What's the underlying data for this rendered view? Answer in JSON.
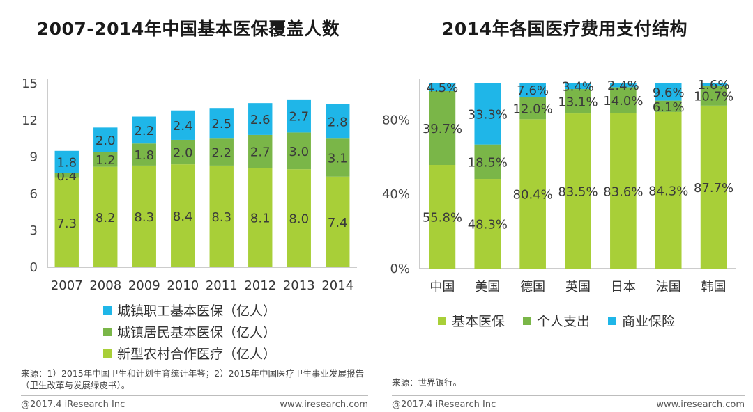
{
  "chart_data": [
    {
      "type": "bar",
      "stacked": true,
      "title": "2007-2014年中国基本医保覆盖人数",
      "categories": [
        "2007",
        "2008",
        "2009",
        "2010",
        "2011",
        "2012",
        "2013",
        "2014"
      ],
      "series": [
        {
          "name": "新型农村合作医疗（亿人）",
          "values": [
            7.3,
            8.2,
            8.3,
            8.4,
            8.3,
            8.1,
            8.0,
            7.4
          ],
          "color": "#a8cf38"
        },
        {
          "name": "城镇居民基本医保（亿人）",
          "values": [
            0.4,
            1.2,
            1.8,
            2.0,
            2.2,
            2.7,
            3.0,
            3.1
          ],
          "color": "#7ab648"
        },
        {
          "name": "城镇职工基本医保（亿人）",
          "values": [
            1.8,
            2.0,
            2.2,
            2.4,
            2.5,
            2.6,
            2.7,
            2.8
          ],
          "color": "#1fb6e8"
        }
      ],
      "legend_order": [
        2,
        1,
        0
      ],
      "legend_position": "bottom",
      "ylim": [
        0,
        15
      ],
      "yticks": [
        "0",
        "3",
        "6",
        "9",
        "12",
        "15"
      ],
      "grid": false
    },
    {
      "type": "bar",
      "stacked": true,
      "title": "2014年各国医疗费用支付结构",
      "categories": [
        "中国",
        "美国",
        "德国",
        "英国",
        "日本",
        "法国",
        "韩国"
      ],
      "series": [
        {
          "name": "基本医保",
          "values": [
            55.8,
            48.3,
            80.4,
            83.5,
            83.6,
            84.3,
            87.7
          ],
          "labels": [
            "55.8%",
            "48.3%",
            "80.4%",
            "83.5%",
            "83.6%",
            "84.3%",
            "87.7%"
          ],
          "color": "#a8cf38"
        },
        {
          "name": "个人支出",
          "values": [
            39.7,
            18.5,
            12.0,
            13.1,
            14.0,
            6.1,
            10.7
          ],
          "labels": [
            "39.7%",
            "18.5%",
            "12.0%",
            "13.1%",
            "14.0%",
            "6.1%",
            "10.7%"
          ],
          "color": "#7ab648"
        },
        {
          "name": "商业保险",
          "values": [
            4.5,
            33.3,
            7.6,
            3.4,
            2.4,
            9.6,
            1.6
          ],
          "labels": [
            "4.5%",
            "33.3%",
            "7.6%",
            "3.4%",
            "2.4%",
            "9.6%",
            "1.6%"
          ],
          "color": "#1fb6e8"
        }
      ],
      "legend_position": "bottom",
      "ylim": [
        0,
        100
      ],
      "yticks": [
        "0%",
        "40%",
        "80%"
      ],
      "grid": false
    }
  ],
  "left": {
    "source": "来源：1）2015年中国卫生和计划生育统计年鉴；2）2015年中国医疗卫生事业发展报告（卫生改革与发展绿皮书）。",
    "footer_left": "@2017.4 iResearch Inc",
    "footer_right": "www.iresearch.com"
  },
  "right": {
    "source": "来源：世界银行。",
    "footer_left": "@2017.4 iResearch Inc",
    "footer_right": "www.iresearch.com"
  }
}
